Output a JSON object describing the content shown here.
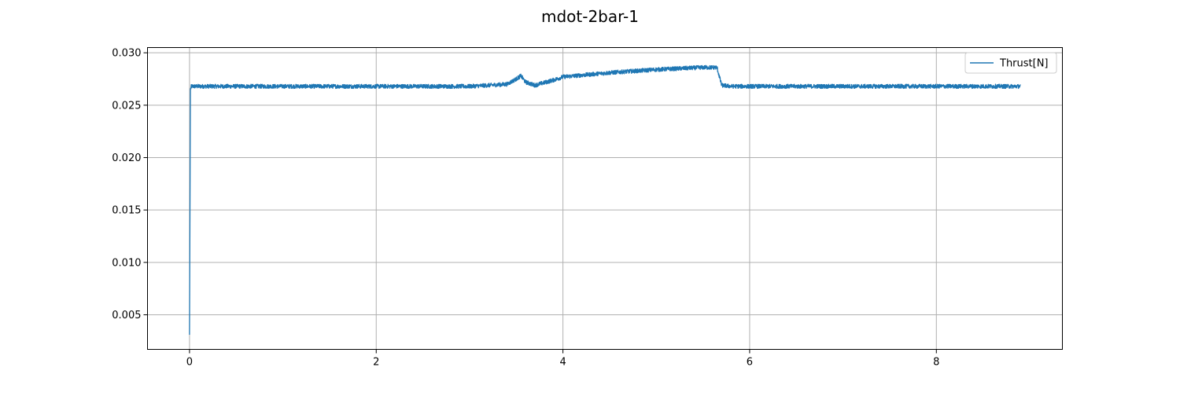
{
  "chart_data": {
    "type": "line",
    "title": "mdot-2bar-1",
    "xlabel": "",
    "ylabel": "",
    "xlim": [
      -0.45,
      9.35
    ],
    "ylim": [
      0.0017,
      0.0305
    ],
    "xticks": [
      0,
      2,
      4,
      6,
      8
    ],
    "xtick_labels": [
      "0",
      "2",
      "4",
      "6",
      "8"
    ],
    "yticks": [
      0.005,
      0.01,
      0.015,
      0.02,
      0.025,
      0.03
    ],
    "ytick_labels": [
      "0.005",
      "0.010",
      "0.015",
      "0.020",
      "0.025",
      "0.030"
    ],
    "grid": true,
    "legend_position": "top-right",
    "series": [
      {
        "name": "Thrust[N]",
        "color": "#1f77b4",
        "noise_band": 0.0004,
        "x": [
          0.0,
          0.005,
          0.01,
          0.02,
          0.05,
          0.2,
          0.5,
          1.0,
          2.0,
          3.0,
          3.4,
          3.5,
          3.55,
          3.6,
          3.7,
          3.9,
          4.0,
          4.5,
          5.0,
          5.5,
          5.65,
          5.7,
          5.8,
          6.0,
          7.0,
          8.0,
          8.9
        ],
        "y": [
          0.0031,
          0.015,
          0.0265,
          0.0268,
          0.0268,
          0.0268,
          0.0268,
          0.0268,
          0.0268,
          0.0268,
          0.027,
          0.0275,
          0.0278,
          0.0272,
          0.0269,
          0.0274,
          0.0277,
          0.0281,
          0.0284,
          0.0286,
          0.0286,
          0.0269,
          0.0268,
          0.0268,
          0.0268,
          0.0268,
          0.0268
        ]
      }
    ]
  }
}
